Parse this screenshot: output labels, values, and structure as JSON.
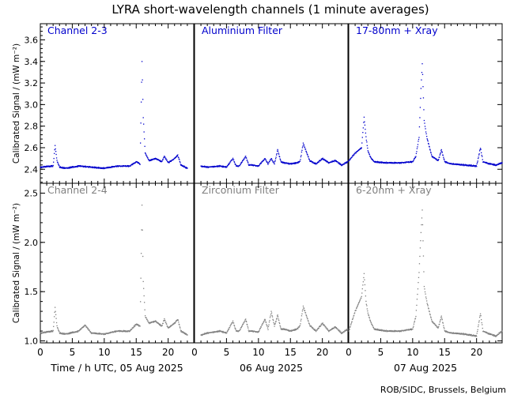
{
  "title": "LYRA short-wavelength channels (1 minute averages)",
  "credit": "ROB/SIDC, Brussels, Belgium",
  "colors": {
    "top": "#0000cc",
    "bottom": "#808080",
    "axis": "#000000"
  },
  "chart_data": {
    "type": "scatter",
    "ylabel": "Calibrated Signal / (mW m⁻²)",
    "x_ticks": [
      0,
      5,
      10,
      15,
      20
    ],
    "date_labels": [
      "Time / h UTC, 05 Aug 2025",
      "06 Aug 2025",
      "07 Aug 2025"
    ],
    "rows": [
      {
        "row": "top",
        "ylim": [
          2.27,
          3.75
        ],
        "y_ticks": [
          "2.4",
          "2.6",
          "2.8",
          "3.0",
          "3.2",
          "3.4",
          "3.6"
        ],
        "panels": [
          {
            "name": "Channel 2-3",
            "x": [
              0,
              2,
              2.3,
              2.6,
              3,
              4,
              6,
              8,
              10,
              12,
              14,
              15,
              15.6,
              15.9,
              16.1,
              16.4,
              17,
              18,
              19,
              19.4,
              20,
              21,
              21.5,
              22,
              23
            ],
            "y": [
              2.42,
              2.43,
              2.62,
              2.48,
              2.42,
              2.41,
              2.43,
              2.42,
              2.41,
              2.43,
              2.43,
              2.47,
              2.45,
              3.4,
              2.88,
              2.55,
              2.48,
              2.5,
              2.47,
              2.52,
              2.46,
              2.5,
              2.53,
              2.44,
              2.41
            ]
          },
          {
            "name": "Aluminium Filter",
            "x": [
              1,
              2,
              4,
              5,
              6,
              6.5,
              7,
              8,
              8.5,
              9,
              10,
              11,
              11.5,
              12,
              12.5,
              13,
              13.5,
              14,
              15,
              16,
              16.5,
              17,
              18,
              19,
              20,
              21,
              22,
              23,
              24
            ],
            "y": [
              2.43,
              2.42,
              2.43,
              2.42,
              2.5,
              2.43,
              2.43,
              2.52,
              2.44,
              2.44,
              2.43,
              2.5,
              2.45,
              2.5,
              2.45,
              2.58,
              2.47,
              2.46,
              2.45,
              2.46,
              2.47,
              2.64,
              2.48,
              2.45,
              2.5,
              2.46,
              2.48,
              2.44,
              2.47
            ]
          },
          {
            "name": "17-80nm + Xray",
            "x": [
              0,
              1,
              2,
              2.4,
              2.7,
              3,
              3.5,
              4,
              6,
              8,
              10,
              10.5,
              11,
              11.3,
              11.5,
              11.8,
              12.2,
              13,
              14,
              14.5,
              15,
              16,
              18,
              20,
              20.6,
              21,
              22,
              23,
              24
            ],
            "y": [
              2.48,
              2.55,
              2.6,
              2.88,
              2.7,
              2.57,
              2.5,
              2.47,
              2.46,
              2.46,
              2.47,
              2.52,
              2.7,
              3.15,
              3.38,
              2.85,
              2.7,
              2.52,
              2.48,
              2.58,
              2.47,
              2.45,
              2.44,
              2.43,
              2.6,
              2.47,
              2.45,
              2.44,
              2.46
            ]
          }
        ]
      },
      {
        "row": "bottom",
        "ylim": [
          0.98,
          2.6
        ],
        "y_ticks": [
          "1.0",
          "1.5",
          "2.0",
          "2.5"
        ],
        "panels": [
          {
            "name": "Channel 2-4",
            "x": [
              0,
              2,
              2.3,
              2.6,
              3,
              4,
              6,
              7,
              8,
              10,
              12,
              14,
              15,
              15.6,
              15.9,
              16.1,
              16.4,
              17,
              18,
              19,
              19.4,
              20,
              21,
              21.5,
              22,
              23
            ],
            "y": [
              1.08,
              1.1,
              1.34,
              1.15,
              1.08,
              1.07,
              1.1,
              1.16,
              1.08,
              1.07,
              1.1,
              1.1,
              1.17,
              1.15,
              2.38,
              1.6,
              1.25,
              1.18,
              1.2,
              1.15,
              1.22,
              1.13,
              1.18,
              1.22,
              1.1,
              1.06
            ]
          },
          {
            "name": "Zirconium Filter",
            "x": [
              1,
              2,
              4,
              5,
              6,
              6.5,
              7,
              8,
              8.5,
              9,
              10,
              11,
              11.5,
              12,
              12.5,
              13,
              13.5,
              14,
              15,
              16,
              16.5,
              17,
              18,
              19,
              20,
              21,
              22,
              23,
              24
            ],
            "y": [
              1.06,
              1.08,
              1.1,
              1.08,
              1.2,
              1.1,
              1.1,
              1.22,
              1.1,
              1.1,
              1.09,
              1.22,
              1.12,
              1.3,
              1.15,
              1.26,
              1.12,
              1.12,
              1.1,
              1.12,
              1.15,
              1.35,
              1.16,
              1.1,
              1.18,
              1.1,
              1.14,
              1.08,
              1.12
            ]
          },
          {
            "name": "6-20nm + Xray",
            "x": [
              0,
              1,
              2,
              2.4,
              2.7,
              3,
              3.5,
              4,
              6,
              8,
              10,
              10.5,
              11,
              11.3,
              11.5,
              11.8,
              12.2,
              13,
              14,
              14.5,
              15,
              16,
              18,
              20,
              20.6,
              21,
              22,
              23,
              24
            ],
            "y": [
              1.1,
              1.3,
              1.45,
              1.68,
              1.4,
              1.28,
              1.18,
              1.12,
              1.1,
              1.1,
              1.12,
              1.25,
              1.7,
              2.1,
              2.33,
              1.55,
              1.4,
              1.2,
              1.13,
              1.25,
              1.1,
              1.08,
              1.07,
              1.05,
              1.28,
              1.1,
              1.07,
              1.05,
              1.1
            ]
          }
        ]
      }
    ]
  }
}
